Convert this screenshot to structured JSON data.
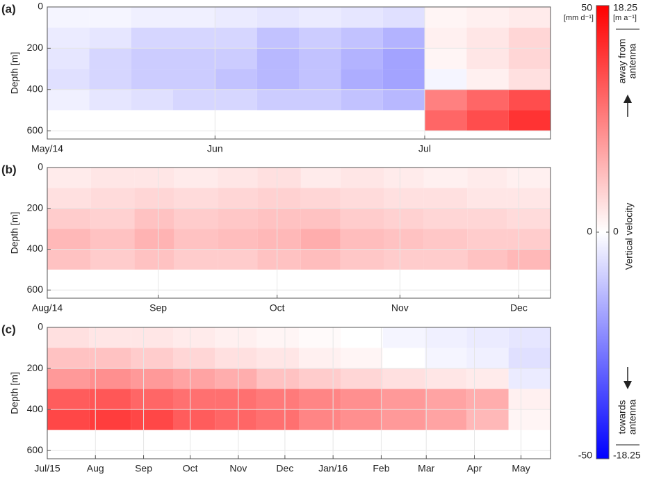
{
  "chart_data": [
    {
      "type": "heatmap",
      "panel_label": "(a)",
      "ylabel": "Depth [m]",
      "grid": true,
      "y_inverted": true,
      "xlim": [
        0,
        72
      ],
      "xticks": [
        {
          "value": 0,
          "label": "May/14"
        },
        {
          "value": 24,
          "label": "Jun"
        },
        {
          "value": 54,
          "label": "Jul"
        }
      ],
      "ylim": [
        0,
        640
      ],
      "yticks": [
        0,
        200,
        400,
        600
      ],
      "x_edges": [
        0,
        6,
        12,
        18,
        24,
        30,
        36,
        42,
        48,
        54,
        60,
        66,
        72
      ],
      "y_edges": [
        0,
        100,
        200,
        300,
        400,
        500,
        600
      ],
      "z": [
        [
          -2,
          -2,
          -3,
          -3,
          -4,
          -5,
          -4,
          -5,
          -6,
          2,
          3,
          4
        ],
        [
          -4,
          -5,
          -8,
          -8,
          -8,
          -12,
          -10,
          -12,
          -15,
          3,
          5,
          8
        ],
        [
          -5,
          -8,
          -10,
          -10,
          -10,
          -14,
          -12,
          -15,
          -18,
          2,
          5,
          8
        ],
        [
          -6,
          -8,
          -10,
          -10,
          -12,
          -14,
          -12,
          -16,
          -18,
          -2,
          3,
          6
        ],
        [
          -3,
          -5,
          -6,
          -8,
          -8,
          -10,
          -10,
          -12,
          -14,
          25,
          30,
          35
        ],
        [
          null,
          null,
          null,
          null,
          null,
          null,
          null,
          null,
          null,
          30,
          35,
          40
        ]
      ]
    },
    {
      "type": "heatmap",
      "panel_label": "(b)",
      "ylabel": "Depth [m]",
      "grid": true,
      "y_inverted": true,
      "xlim": [
        0,
        127
      ],
      "xticks": [
        {
          "value": 0,
          "label": "Aug/14"
        },
        {
          "value": 28,
          "label": "Sep"
        },
        {
          "value": 58,
          "label": "Oct"
        },
        {
          "value": 89,
          "label": "Nov"
        },
        {
          "value": 119,
          "label": "Dec"
        }
      ],
      "ylim": [
        0,
        640
      ],
      "yticks": [
        0,
        200,
        400,
        600
      ],
      "x_edges": [
        0,
        11,
        22,
        32,
        43,
        53,
        64,
        74,
        85,
        95,
        106,
        116,
        127
      ],
      "y_edges": [
        0,
        100,
        200,
        300,
        400,
        500,
        600
      ],
      "z": [
        [
          4,
          5,
          5,
          4,
          5,
          6,
          4,
          5,
          4,
          3,
          4,
          3
        ],
        [
          6,
          7,
          8,
          7,
          8,
          9,
          8,
          7,
          6,
          6,
          5,
          5
        ],
        [
          10,
          9,
          12,
          10,
          11,
          12,
          12,
          10,
          9,
          8,
          8,
          7
        ],
        [
          14,
          12,
          15,
          12,
          13,
          14,
          16,
          13,
          12,
          11,
          10,
          10
        ],
        [
          12,
          10,
          12,
          10,
          10,
          12,
          13,
          11,
          10,
          10,
          12,
          14
        ],
        [
          null,
          null,
          null,
          null,
          null,
          null,
          null,
          null,
          null,
          null,
          null,
          null
        ]
      ]
    },
    {
      "type": "heatmap",
      "panel_label": "(c)",
      "ylabel": "Depth [m]",
      "grid": true,
      "y_inverted": true,
      "xlim": [
        0,
        324
      ],
      "xticks": [
        {
          "value": 0,
          "label": "Jul/15"
        },
        {
          "value": 31,
          "label": "Aug"
        },
        {
          "value": 62,
          "label": "Sep"
        },
        {
          "value": 92,
          "label": "Oct"
        },
        {
          "value": 123,
          "label": "Nov"
        },
        {
          "value": 153,
          "label": "Dec"
        },
        {
          "value": 184,
          "label": "Jan/16"
        },
        {
          "value": 215,
          "label": "Feb"
        },
        {
          "value": 244,
          "label": "Mar"
        },
        {
          "value": 275,
          "label": "Apr"
        },
        {
          "value": 305,
          "label": "May"
        }
      ],
      "ylim": [
        0,
        640
      ],
      "yticks": [
        0,
        200,
        400,
        600
      ],
      "x_edges": [
        0,
        27,
        54,
        81,
        108,
        135,
        162,
        189,
        216,
        243,
        270,
        297,
        324
      ],
      "y_edges": [
        0,
        100,
        200,
        300,
        400,
        500,
        600
      ],
      "z": [
        [
          6,
          5,
          5,
          4,
          3,
          2,
          1,
          0,
          -2,
          -3,
          -4,
          -5
        ],
        [
          12,
          12,
          10,
          8,
          6,
          5,
          3,
          2,
          0,
          -2,
          -3,
          -6
        ],
        [
          20,
          22,
          20,
          18,
          16,
          12,
          10,
          8,
          6,
          5,
          4,
          -4
        ],
        [
          32,
          33,
          30,
          28,
          28,
          26,
          24,
          22,
          20,
          18,
          16,
          3
        ],
        [
          36,
          38,
          36,
          32,
          30,
          28,
          24,
          22,
          20,
          18,
          14,
          2
        ],
        [
          null,
          null,
          null,
          null,
          null,
          null,
          null,
          null,
          null,
          null,
          null,
          null
        ]
      ]
    }
  ],
  "colorbar": {
    "clim": [
      -50,
      50
    ],
    "ticks": [
      50,
      0,
      -50
    ],
    "unit": "[mm d⁻¹]",
    "lim2": [
      -18.25,
      18.25
    ],
    "ticks2": [
      18.25,
      0,
      -18.25
    ],
    "unit2": "[m a⁻¹]",
    "label": "Vertical velocity",
    "top_note": [
      "away from",
      "antenna"
    ],
    "bottom_note": [
      "towards",
      "antenna"
    ]
  }
}
